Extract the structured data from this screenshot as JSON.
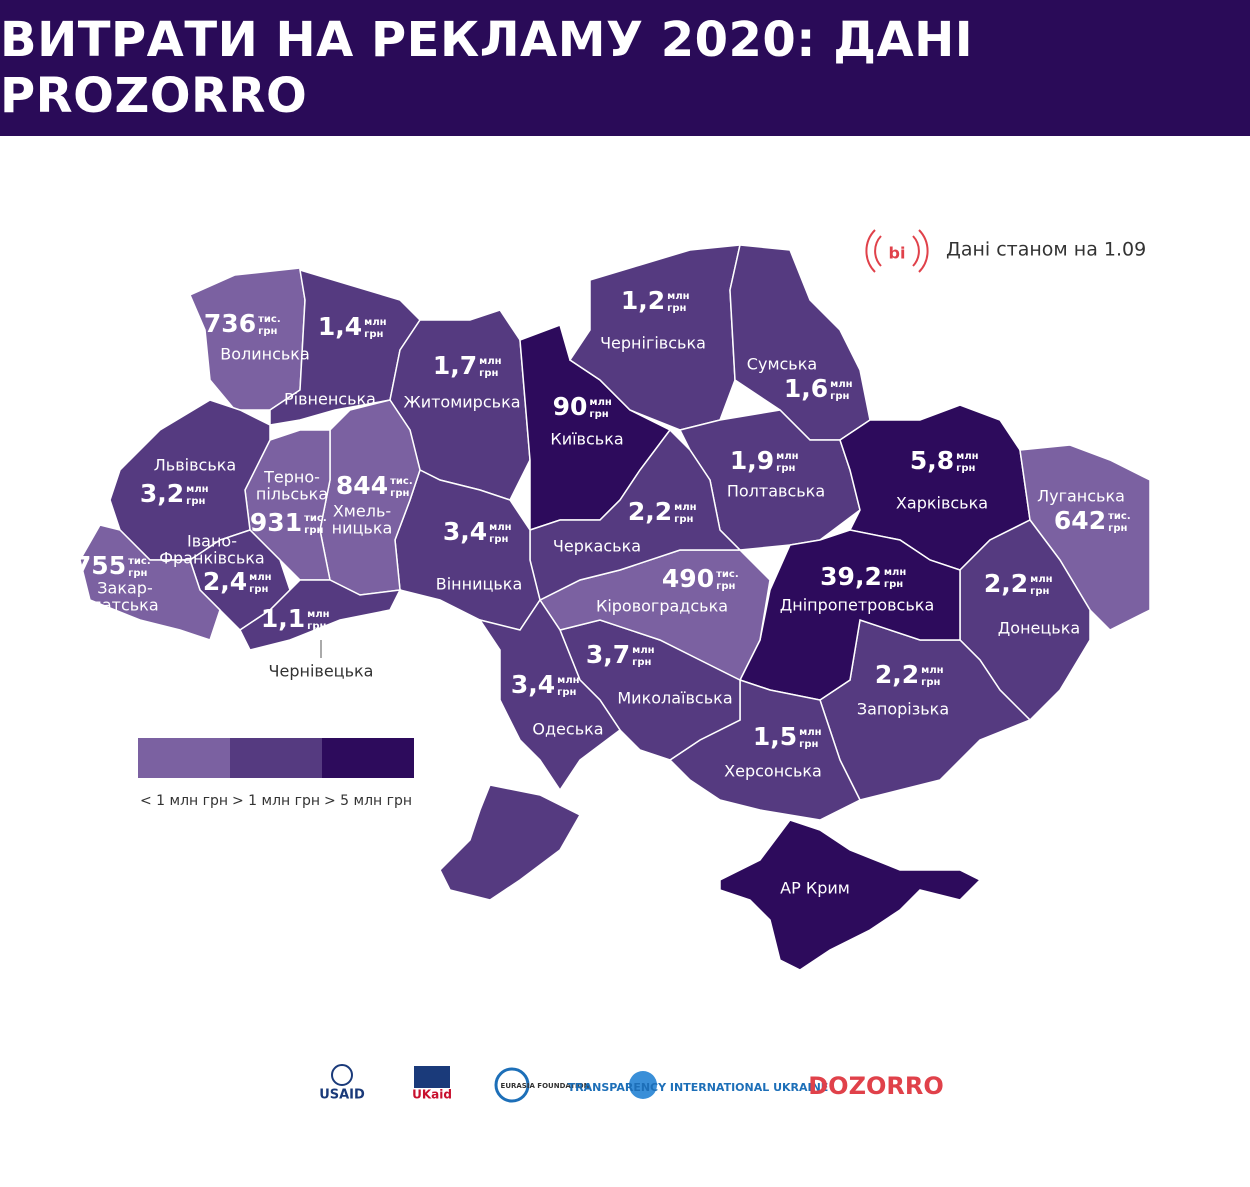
{
  "header": {
    "title": "ВИТРАТИ НА РЕКЛАМУ 2020: ДАНІ PROZORRO"
  },
  "note": {
    "icon": "bi",
    "text": "Дані станом на 1.09"
  },
  "legend": [
    {
      "label": "< 1 млн грн",
      "color": "#7b61a1"
    },
    {
      "label": "> 1 млн грн",
      "color": "#553a80"
    },
    {
      "label": "> 5 млн грн",
      "color": "#2d0b5c"
    }
  ],
  "regions": [
    {
      "name": [
        "Волинська"
      ],
      "amount": "736",
      "unit": [
        "тис.",
        "грн"
      ],
      "color": "#7b61a1"
    },
    {
      "name": [
        "Рівненська"
      ],
      "amount": "1,4",
      "unit": [
        "млн",
        "грн"
      ],
      "color": "#553a80"
    },
    {
      "name": [
        "Житомирська"
      ],
      "amount": "1,7",
      "unit": [
        "млн",
        "грн"
      ],
      "color": "#553a80"
    },
    {
      "name": [
        "Київська"
      ],
      "amount": "90",
      "unit": [
        "млн",
        "грн"
      ],
      "color": "#2d0b5c"
    },
    {
      "name": [
        "Чернігівська"
      ],
      "amount": "1,2",
      "unit": [
        "млн",
        "грн"
      ],
      "color": "#553a80"
    },
    {
      "name": [
        "Сумська"
      ],
      "amount": "1,6",
      "unit": [
        "млн",
        "грн"
      ],
      "color": "#553a80"
    },
    {
      "name": [
        "Полтавська"
      ],
      "amount": "1,9",
      "unit": [
        "млн",
        "грн"
      ],
      "color": "#553a80"
    },
    {
      "name": [
        "Харківська"
      ],
      "amount": "5,8",
      "unit": [
        "млн",
        "грн"
      ],
      "color": "#2d0b5c"
    },
    {
      "name": [
        "Луганська"
      ],
      "amount": "642",
      "unit": [
        "тис.",
        "грн"
      ],
      "color": "#7b61a1"
    },
    {
      "name": [
        "Донецька"
      ],
      "amount": "2,2",
      "unit": [
        "млн",
        "грн"
      ],
      "color": "#553a80"
    },
    {
      "name": [
        "Запорізька"
      ],
      "amount": "2,2",
      "unit": [
        "млн",
        "грн"
      ],
      "color": "#553a80"
    },
    {
      "name": [
        "Дніпропетровська"
      ],
      "amount": "39,2",
      "unit": [
        "млн",
        "грн"
      ],
      "color": "#2d0b5c"
    },
    {
      "name": [
        "Херсонська"
      ],
      "amount": "1,5",
      "unit": [
        "млн",
        "грн"
      ],
      "color": "#553a80"
    },
    {
      "name": [
        "Миколаївська"
      ],
      "amount": "3,7",
      "unit": [
        "млн",
        "грн"
      ],
      "color": "#553a80"
    },
    {
      "name": [
        "Кіровоградська"
      ],
      "amount": "490",
      "unit": [
        "тис.",
        "грн"
      ],
      "color": "#7b61a1"
    },
    {
      "name": [
        "Черкаська"
      ],
      "amount": "2,2",
      "unit": [
        "млн",
        "грн"
      ],
      "color": "#553a80"
    },
    {
      "name": [
        "Вінницька"
      ],
      "amount": "3,4",
      "unit": [
        "млн",
        "грн"
      ],
      "color": "#553a80"
    },
    {
      "name": [
        "Одеська"
      ],
      "amount": "3,4",
      "unit": [
        "млн",
        "грн"
      ],
      "color": "#553a80"
    },
    {
      "name": [
        "Хмель-",
        "ницька"
      ],
      "amount": "844",
      "unit": [
        "тис.",
        "грн"
      ],
      "color": "#7b61a1"
    },
    {
      "name": [
        "Терно-",
        "пільська"
      ],
      "amount": "931",
      "unit": [
        "тис.",
        "грн"
      ],
      "color": "#7b61a1"
    },
    {
      "name": [
        "Львівська"
      ],
      "amount": "3,2",
      "unit": [
        "млн",
        "грн"
      ],
      "color": "#553a80"
    },
    {
      "name": [
        "Івано-",
        "Франківська"
      ],
      "amount": "2,4",
      "unit": [
        "млн",
        "грн"
      ],
      "color": "#553a80"
    },
    {
      "name": [
        "Закар-",
        "патська"
      ],
      "amount": "755",
      "unit": [
        "тис.",
        "грн"
      ],
      "color": "#7b61a1"
    },
    {
      "name": [
        "Чернівецька"
      ],
      "amount": "1,1",
      "unit": [
        "млн",
        "грн"
      ],
      "color": "#553a80"
    },
    {
      "name": [
        "АР Крим"
      ],
      "color": "#2d0b5c"
    }
  ],
  "logos": [
    "USAID",
    "UKaid",
    "EURASIA FOUNDATION",
    "TRANSPARENCY INTERNATIONAL UKRAINE",
    "DOZORRO"
  ]
}
